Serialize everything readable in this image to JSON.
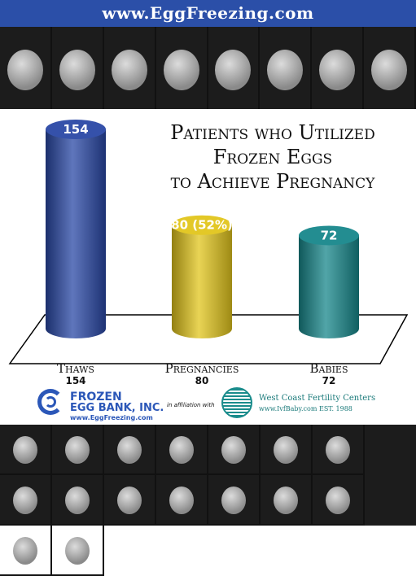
{
  "banner": {
    "url_text": "www.EggFreezing.com"
  },
  "chart_data": {
    "type": "bar",
    "title_lines": [
      "Patients who Utilized",
      "Frozen Eggs",
      "to Achieve Pregnancy"
    ],
    "categories": [
      "Thaws",
      "Pregnancies",
      "Babies"
    ],
    "values": [
      154,
      80,
      72
    ],
    "bar_labels": [
      "154",
      "80 (52%)",
      "72"
    ],
    "category_values": [
      "154",
      "80",
      "72"
    ],
    "bar_colors": [
      "#2a48a6",
      "#e2c51c",
      "#17878b"
    ],
    "ylim": [
      0,
      154
    ],
    "grid": false
  },
  "logos": {
    "frozen_egg_bank": {
      "line1": "FROZEN",
      "line2": "EGG BANK, INC.",
      "line3": "www.EggFreezing.com",
      "brand_color": "#2b57b8"
    },
    "affiliation": "in affiliation with",
    "west_coast": {
      "line1": "West Coast Fertility Centers",
      "line2": "www.IvfBaby.com   EST. 1988",
      "brand_color": "#1a7a7a"
    }
  }
}
